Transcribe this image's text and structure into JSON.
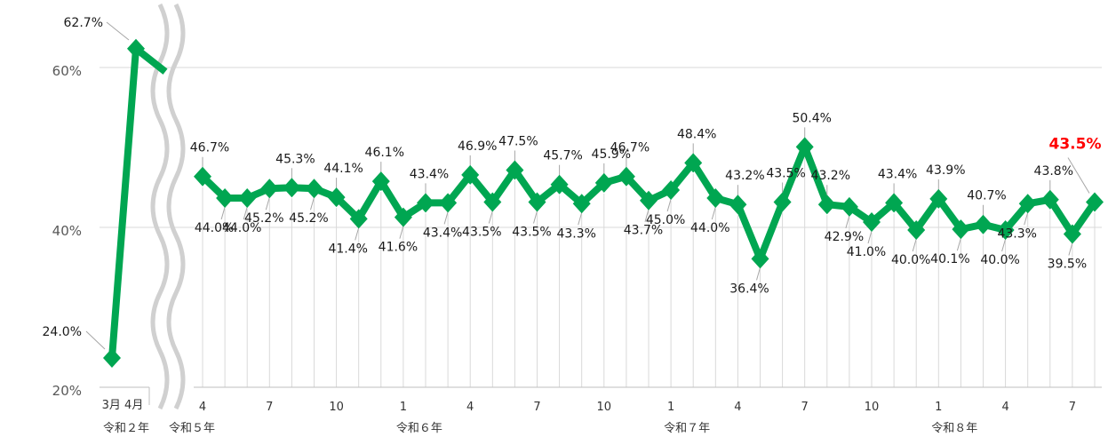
{
  "chart_data": {
    "type": "line",
    "title": "",
    "xlabel": "",
    "ylabel": "",
    "y_ticks": [
      "20%",
      "40%",
      "60%"
    ],
    "ylim": [
      20,
      65
    ],
    "axis_break": true,
    "grid": "horizontal at 40% and 60%, vertical gridlines per month",
    "line_color": "#00a651",
    "highlight_color": "#ff0000",
    "series": [
      {
        "categories": [
          "3月",
          "4月"
        ],
        "values": [
          24.0,
          62.7
        ],
        "labels": [
          "24.0%",
          "62.7%"
        ]
      },
      {
        "x_ticks": [
          {
            "i": 0,
            "label": "4"
          },
          {
            "i": 3,
            "label": "7"
          },
          {
            "i": 6,
            "label": "10"
          },
          {
            "i": 9,
            "label": "1"
          },
          {
            "i": 12,
            "label": "4"
          },
          {
            "i": 15,
            "label": "7"
          },
          {
            "i": 18,
            "label": "10"
          },
          {
            "i": 21,
            "label": "1"
          },
          {
            "i": 24,
            "label": "4"
          },
          {
            "i": 27,
            "label": "7"
          },
          {
            "i": 30,
            "label": "10"
          },
          {
            "i": 33,
            "label": "1"
          },
          {
            "i": 36,
            "label": "4"
          },
          {
            "i": 39,
            "label": "7"
          }
        ],
        "values": [
          46.7,
          44.0,
          44.0,
          45.2,
          45.3,
          45.2,
          44.1,
          41.4,
          46.1,
          41.6,
          43.4,
          43.4,
          46.9,
          43.5,
          47.5,
          43.5,
          45.7,
          43.3,
          45.9,
          46.7,
          43.7,
          45.0,
          48.4,
          44.0,
          43.2,
          36.4,
          43.5,
          50.4,
          43.2,
          42.9,
          41.0,
          43.4,
          40.0,
          43.9,
          40.1,
          40.7,
          40.0,
          43.3,
          43.8,
          39.5,
          43.5
        ],
        "labels": [
          "46.7%",
          "44.0%",
          "44.0%",
          "45.2%",
          "45.3%",
          "45.2%",
          "44.1%",
          "41.4%",
          "46.1%",
          "41.6%",
          "43.4%",
          "43.4%",
          "46.9%",
          "43.5%",
          "47.5%",
          "43.5%",
          "45.7%",
          "43.3%",
          "45.9%",
          "46.7%",
          "43.7%",
          "45.0%",
          "48.4%",
          "44.0%",
          "43.2%",
          "36.4%",
          "43.5%",
          "50.4%",
          "43.2%",
          "42.9%",
          "41.0%",
          "43.4%",
          "40.0%",
          "43.9%",
          "40.1%",
          "40.7%",
          "40.0%",
          "43.3%",
          "43.8%",
          "39.5%",
          "43.5%"
        ],
        "highlight_last": true
      }
    ],
    "eras": [
      {
        "label": "令和２年",
        "segment": 0
      },
      {
        "label": "令和５年",
        "index": 0
      },
      {
        "label": "令和６年",
        "index": 9
      },
      {
        "label": "令和７年",
        "index": 21
      },
      {
        "label": "令和８年",
        "index": 33
      }
    ]
  }
}
